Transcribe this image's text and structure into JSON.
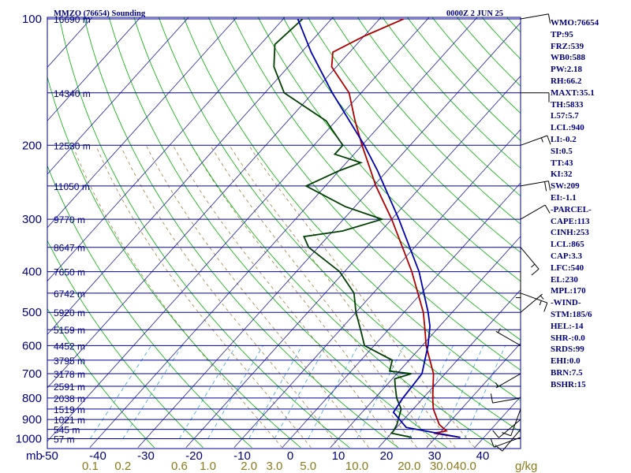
{
  "header": {
    "station": "MMZO (76654) Sounding",
    "time": "0000Z  2 JUN 25"
  },
  "side_panel": [
    "WMO:76654",
    "TP:95",
    "FRZ:539",
    "WB0:588",
    "PW:2.18",
    "RH:66.2",
    "MAXT:35.1",
    "TH:5833",
    "L57:5.7",
    "LCL:940",
    "LI:-0.2",
    "SI:0.5",
    "TT:43",
    "KI:32",
    "SW:209",
    "EI:-1.1",
    "-PARCEL-",
    "CAPE:113",
    "CINH:253",
    "LCL:865",
    "CAP:3.3",
    "LFC:540",
    "EL:230",
    "MPL:170",
    "-WIND-",
    "STM:185/6",
    "HEL:-14",
    "SHR-:0.0",
    "SRDS:99",
    "EHI:0.0",
    "BRN:7.5",
    "BSHR:15"
  ],
  "colors": {
    "isobar": "#0000a0",
    "isotherm": "#2020a0",
    "dry_adiabat": "#00b000",
    "moist_adiabat": "#a08040",
    "mixing_ratio": "#40a0e0",
    "temperature": "#b00000",
    "dewpoint": "#004000",
    "parcel": "#0000b0",
    "wind": "#000000"
  },
  "chart_data": {
    "type": "line",
    "title": "MMZO (76654) Sounding",
    "xlabel": "",
    "ylabel": "",
    "pressure_axis": {
      "scale": "log",
      "range": [
        1000,
        100
      ],
      "unit_label": "mb",
      "levels": [
        1000,
        900,
        800,
        700,
        600,
        500,
        400,
        300,
        200,
        100
      ],
      "tick_labels": [
        "1000",
        "900",
        "800",
        "700",
        "600",
        "500",
        "400",
        "300",
        "200",
        "100"
      ]
    },
    "temperature_axis": {
      "range": [
        -50,
        40
      ],
      "ticks": [
        -50,
        -40,
        -30,
        -20,
        -10,
        0,
        10,
        20,
        30,
        40
      ],
      "tick_labels": [
        "-50",
        "-40",
        "-30",
        "-20",
        "-10",
        "0",
        "10",
        "20",
        "30",
        "40"
      ]
    },
    "mixing_ratio_axis": {
      "unit_label": "g/kg",
      "labels": [
        "0.1",
        "0.2",
        "0.6",
        "1.0",
        "2.0",
        "3.0",
        "5.0",
        "10.0",
        "20.0",
        "30.0",
        "40.0"
      ],
      "values": [
        0.1,
        0.2,
        0.6,
        1.0,
        2.0,
        3.0,
        5.0,
        10.0,
        20.0,
        30.0,
        40.0
      ]
    },
    "height_levels": [
      {
        "p": 100,
        "label": "16690 m"
      },
      {
        "p": 150,
        "label": "14340 m"
      },
      {
        "p": 200,
        "label": "12530 m"
      },
      {
        "p": 250,
        "label": "11050 m"
      },
      {
        "p": 300,
        "label": "9770 m"
      },
      {
        "p": 350,
        "label": "8647 m"
      },
      {
        "p": 400,
        "label": "7650 m"
      },
      {
        "p": 450,
        "label": "6742 m"
      },
      {
        "p": 500,
        "label": "5920 m"
      },
      {
        "p": 550,
        "label": "5159 m"
      },
      {
        "p": 600,
        "label": "4452 m"
      },
      {
        "p": 650,
        "label": "3795 m"
      },
      {
        "p": 700,
        "label": "3178 m"
      },
      {
        "p": 750,
        "label": "2591 m"
      },
      {
        "p": 800,
        "label": "2038 m"
      },
      {
        "p": 850,
        "label": "1519 m"
      },
      {
        "p": 900,
        "label": "1021 m"
      },
      {
        "p": 950,
        "label": "545 m"
      },
      {
        "p": 1000,
        "label": "57 m"
      }
    ],
    "series": [
      {
        "key": "temperature",
        "values": [
          [
            993,
            35.1
          ],
          [
            970,
            28.8
          ],
          [
            958,
            31.0
          ],
          [
            925,
            28.3
          ],
          [
            850,
            24.2
          ],
          [
            800,
            22.0
          ],
          [
            700,
            17.6
          ],
          [
            600,
            10.8
          ],
          [
            550,
            7.6
          ],
          [
            500,
            4.0
          ],
          [
            400,
            -6.0
          ],
          [
            350,
            -12.5
          ],
          [
            300,
            -20.0
          ],
          [
            250,
            -29.5
          ],
          [
            200,
            -40.0
          ],
          [
            175,
            -46.0
          ],
          [
            150,
            -52.5
          ],
          [
            130,
            -61.0
          ],
          [
            120,
            -63.5
          ],
          [
            110,
            -60.0
          ],
          [
            100,
            -55.0
          ]
        ]
      },
      {
        "key": "dewpoint",
        "values": [
          [
            993,
            25.0
          ],
          [
            970,
            20.0
          ],
          [
            958,
            20.0
          ],
          [
            925,
            19.5
          ],
          [
            850,
            17.5
          ],
          [
            800,
            14.5
          ],
          [
            750,
            12.0
          ],
          [
            720,
            10.5
          ],
          [
            700,
            13.0
          ],
          [
            690,
            8.0
          ],
          [
            650,
            6.5
          ],
          [
            600,
            -2.0
          ],
          [
            560,
            -5.0
          ],
          [
            500,
            -10.0
          ],
          [
            450,
            -14.0
          ],
          [
            400,
            -21.0
          ],
          [
            350,
            -32.0
          ],
          [
            330,
            -35.0
          ],
          [
            320,
            -28.0
          ],
          [
            300,
            -22.0
          ],
          [
            280,
            -32.0
          ],
          [
            250,
            -44.0
          ],
          [
            230,
            -40.0
          ],
          [
            220,
            -37.0
          ],
          [
            210,
            -44.0
          ],
          [
            200,
            -44.0
          ],
          [
            175,
            -52.0
          ],
          [
            150,
            -66.0
          ],
          [
            130,
            -73.0
          ],
          [
            115,
            -77.0
          ],
          [
            100,
            -76.0
          ]
        ]
      },
      {
        "key": "parcel",
        "values": [
          [
            993,
            35.1
          ],
          [
            940,
            22.0
          ],
          [
            865,
            16.5
          ],
          [
            800,
            15.8
          ],
          [
            700,
            15.2
          ],
          [
            600,
            11.2
          ],
          [
            540,
            8.0
          ],
          [
            500,
            5.0
          ],
          [
            400,
            -4.5
          ],
          [
            300,
            -18.5
          ],
          [
            230,
            -32.0
          ],
          [
            200,
            -39.5
          ],
          [
            150,
            -56.0
          ],
          [
            120,
            -68.0
          ],
          [
            100,
            -77.0
          ]
        ]
      }
    ],
    "winds": [
      {
        "p": 993,
        "dir": 250,
        "spd": 10
      },
      {
        "p": 950,
        "dir": 220,
        "spd": 10
      },
      {
        "p": 900,
        "dir": 230,
        "spd": 10
      },
      {
        "p": 850,
        "dir": 200,
        "spd": 10
      },
      {
        "p": 800,
        "dir": 260,
        "spd": 10
      },
      {
        "p": 700,
        "dir": 240,
        "spd": 5
      },
      {
        "p": 600,
        "dir": 300,
        "spd": 5
      },
      {
        "p": 500,
        "dir": 50,
        "spd": 5
      },
      {
        "p": 450,
        "dir": 110,
        "spd": 15
      },
      {
        "p": 400,
        "dir": 180,
        "spd": 5
      },
      {
        "p": 350,
        "dir": 140,
        "spd": 15
      },
      {
        "p": 300,
        "dir": 60,
        "spd": 10
      },
      {
        "p": 250,
        "dir": 80,
        "spd": 20
      },
      {
        "p": 200,
        "dir": 70,
        "spd": 15
      },
      {
        "p": 150,
        "dir": 90,
        "spd": 10
      },
      {
        "p": 100,
        "dir": 80,
        "spd": 10
      }
    ]
  }
}
